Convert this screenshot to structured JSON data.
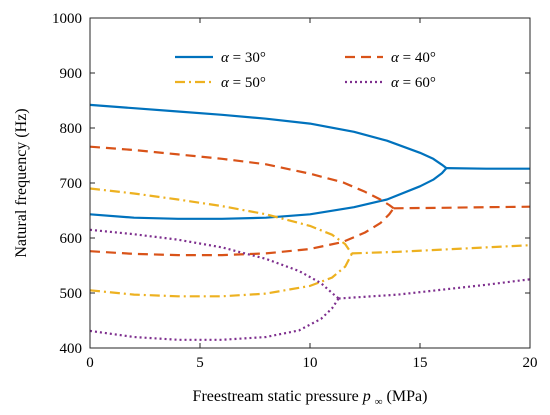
{
  "chart_data": {
    "type": "line",
    "xlabel_text": "Freestream static pressure ",
    "xlabel_symbol": "p",
    "xlabel_sub": "∞",
    "xlabel_unit": "(MPa)",
    "ylabel": "Natural frequency (Hz)",
    "xlim": [
      0,
      20
    ],
    "ylim": [
      400,
      1000
    ],
    "xticks": [
      0,
      5,
      10,
      15,
      20
    ],
    "yticks": [
      400,
      500,
      600,
      700,
      800,
      900,
      1000
    ],
    "xtick_labels": [
      "0",
      "5",
      "10",
      "15",
      "20"
    ],
    "ytick_labels": [
      "400",
      "500",
      "600",
      "700",
      "800",
      "900",
      "1000"
    ],
    "grid": false,
    "legend_position": "top",
    "series": [
      {
        "name": "α = 30°",
        "legend_symbol": "α",
        "legend_value": " = 30°",
        "color": "#0072BD",
        "dash": "solid",
        "branches": [
          {
            "x": [
              0,
              2,
              4,
              6,
              8,
              10,
              12,
              13.5,
              15,
              15.6,
              16.0,
              16.2
            ],
            "y": [
              842,
              836,
              830,
              824,
              817,
              808,
              793,
              777,
              755,
              744,
              733,
              727
            ]
          },
          {
            "x": [
              0,
              2,
              4,
              6,
              8,
              10,
              12,
              13.5,
              15,
              15.6,
              16.0,
              16.2
            ],
            "y": [
              643,
              637,
              635,
              635,
              637,
              643,
              656,
              670,
              694,
              706,
              718,
              727
            ]
          },
          {
            "x": [
              16.2,
              18,
              20
            ],
            "y": [
              727,
              726,
              726
            ]
          }
        ]
      },
      {
        "name": "α = 40°",
        "legend_symbol": "α",
        "legend_value": " = 40°",
        "color": "#D95319",
        "dash": "10,6",
        "branches": [
          {
            "x": [
              0,
              2,
              4,
              6,
              8,
              10,
              11.5,
              12.5,
              13.2,
              13.6,
              13.8
            ],
            "y": [
              766,
              760,
              752,
              744,
              734,
              717,
              701,
              684,
              670,
              660,
              654
            ]
          },
          {
            "x": [
              0,
              2,
              4,
              6,
              8,
              10,
              11.5,
              12.5,
              13.2,
              13.6,
              13.8
            ],
            "y": [
              576,
              571,
              569,
              569,
              572,
              580,
              593,
              610,
              627,
              643,
              654
            ]
          },
          {
            "x": [
              13.8,
              16,
              18,
              20
            ],
            "y": [
              654,
              655,
              656,
              657
            ]
          }
        ]
      },
      {
        "name": "α = 50°",
        "legend_symbol": "α",
        "legend_value": " = 50°",
        "color": "#EDB120",
        "dash": "10,4,2,4",
        "branches": [
          {
            "x": [
              0,
              2,
              4,
              6,
              8,
              10,
              11,
              11.6,
              11.9
            ],
            "y": [
              690,
              681,
              670,
              658,
              643,
              622,
              606,
              589,
              571
            ]
          },
          {
            "x": [
              0,
              2,
              4,
              6,
              8,
              10,
              11,
              11.6,
              11.9
            ],
            "y": [
              505,
              497,
              494,
              494,
              499,
              513,
              528,
              548,
              571
            ]
          },
          {
            "x": [
              11.9,
              14,
              16,
              18,
              20
            ],
            "y": [
              572,
              575,
              579,
              583,
              587
            ]
          }
        ]
      },
      {
        "name": "α = 60°",
        "legend_symbol": "α",
        "legend_value": " = 60°",
        "color": "#7E2F8E",
        "dash": "2,3",
        "branches": [
          {
            "x": [
              0,
              2,
              4,
              6,
              8,
              9.5,
              10.5,
              11.0,
              11.3
            ],
            "y": [
              615,
              607,
              597,
              583,
              562,
              540,
              518,
              500,
              490
            ]
          },
          {
            "x": [
              0,
              2,
              4,
              6,
              8,
              9.5,
              10.5,
              11.0,
              11.3
            ],
            "y": [
              431,
              420,
              415,
              415,
              420,
              432,
              453,
              472,
              490
            ]
          },
          {
            "x": [
              11.3,
              14,
              16,
              18,
              20
            ],
            "y": [
              490,
              497,
              506,
              515,
              525
            ]
          }
        ]
      }
    ]
  }
}
